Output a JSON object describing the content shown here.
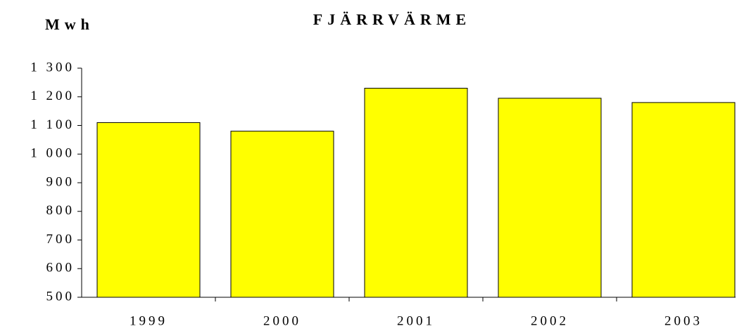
{
  "chart_data": {
    "type": "bar",
    "title": "FJÄRRVÄRME",
    "y_label": "Mwh",
    "categories": [
      "1999",
      "2000",
      "2001",
      "2002",
      "2003"
    ],
    "values": [
      1110,
      1080,
      1230,
      1195,
      1180
    ],
    "color": "#ffff00",
    "ylim": [
      500,
      1300
    ],
    "yticks": [
      500,
      600,
      700,
      800,
      900,
      {
        "value": 1000,
        "label": "1 000"
      },
      {
        "value": 1100,
        "label": "1 100"
      },
      {
        "value": 1200,
        "label": "1 200"
      },
      {
        "value": 1300,
        "label": "1 300"
      }
    ],
    "grid": false
  }
}
